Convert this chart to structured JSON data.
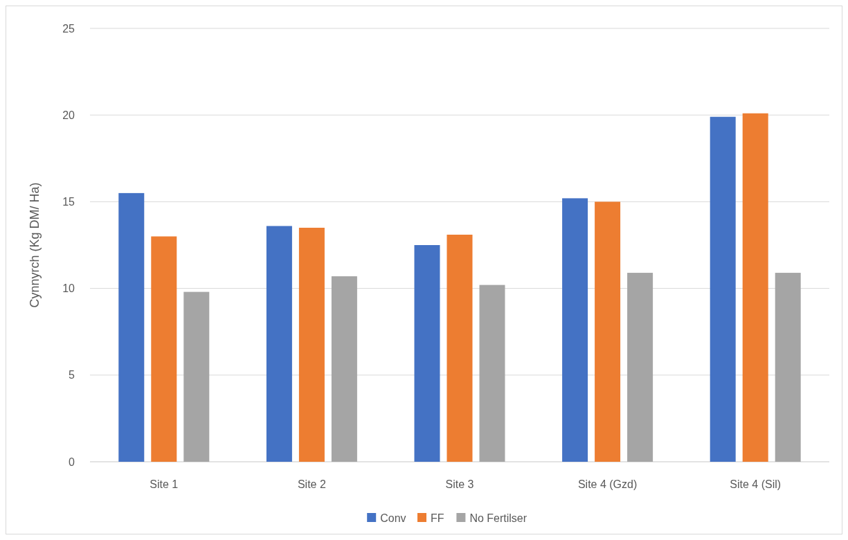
{
  "chart_data": {
    "type": "bar",
    "ylabel": "Cynnyrch (Kg DM/ Ha)",
    "categories": [
      "Site 1",
      "Site 2",
      "Site 3",
      "Site 4 (Gzd)",
      "Site 4 (Sil)"
    ],
    "series": [
      {
        "name": "Conv",
        "color": "#4472c4",
        "values": [
          15.5,
          13.6,
          12.5,
          15.2,
          19.9
        ]
      },
      {
        "name": "FF",
        "color": "#ed7d31",
        "values": [
          13.0,
          13.5,
          13.1,
          15.0,
          20.1
        ]
      },
      {
        "name": "No Fertilser",
        "color": "#a5a5a5",
        "values": [
          9.8,
          10.7,
          10.2,
          10.9,
          10.9
        ]
      }
    ],
    "ylim": [
      0,
      25
    ],
    "yticks": [
      0,
      5,
      10,
      15,
      20,
      25
    ],
    "grid": "y",
    "legend": "bottom"
  }
}
